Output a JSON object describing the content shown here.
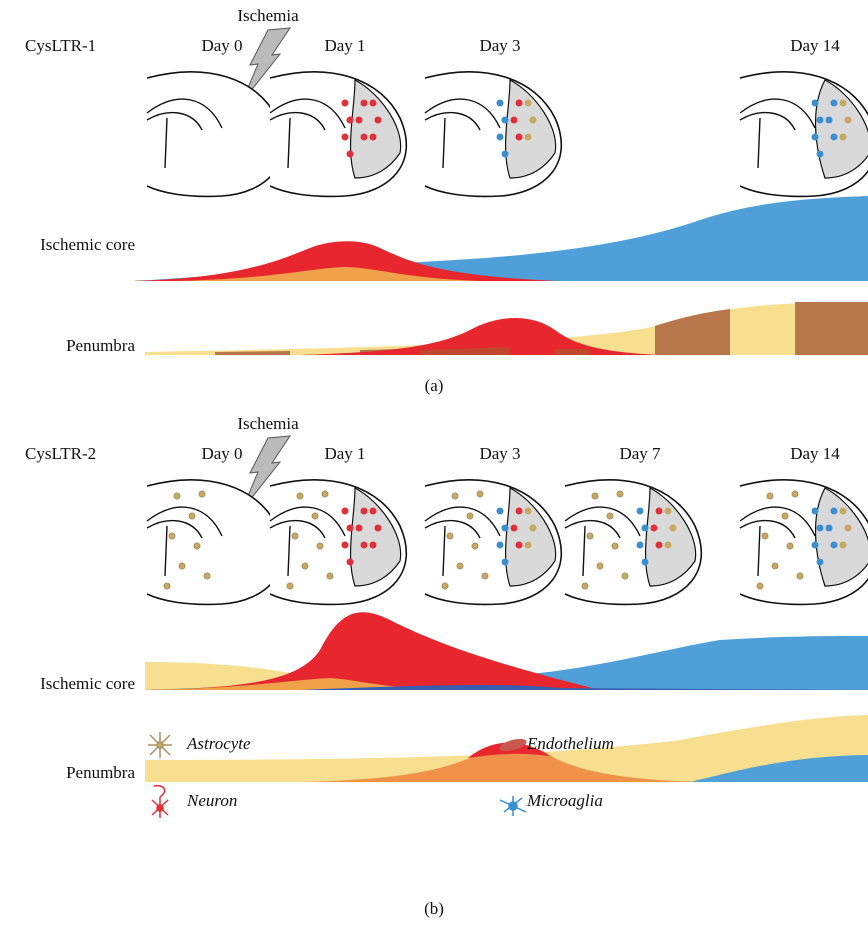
{
  "panels": [
    {
      "receptor": "CysLTR-1",
      "ischemia": "Ischemia",
      "days": [
        "Day 0",
        "Day 1",
        "Day 3",
        "Day 14"
      ],
      "rows": [
        "Ischemic core",
        "Penumbra"
      ],
      "label": "(a)"
    },
    {
      "receptor": "CysLTR-2",
      "ischemia": "Ischemia",
      "days": [
        "Day 0",
        "Day 1",
        "Day 3",
        "Day 7",
        "Day 14"
      ],
      "rows": [
        "Ischemic core",
        "Penumbra"
      ],
      "label": "(b)"
    }
  ],
  "legend": [
    "Astrocyte",
    "Endothelium",
    "Neuron",
    "Microaglia"
  ]
}
